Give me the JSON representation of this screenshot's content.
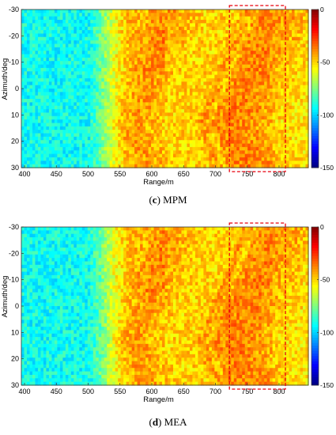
{
  "chart_data": [
    {
      "type": "heatmap",
      "xlabel": "Range/m",
      "ylabel": "Azimuth/deg",
      "xlim": [
        395,
        846
      ],
      "ylim": [
        -30,
        30
      ],
      "y_direction": "reversed",
      "x_ticks": [
        400,
        450,
        500,
        550,
        600,
        650,
        700,
        750,
        800
      ],
      "y_ticks": [
        -30,
        -20,
        -10,
        0,
        10,
        20,
        30
      ],
      "colorbar": {
        "range": [
          -150,
          0
        ],
        "ticks": [
          0,
          -50,
          -100,
          -150
        ],
        "colormap": "jet"
      },
      "highlight_box": {
        "x_range": [
          722,
          810
        ],
        "y_range": [
          -30,
          30
        ],
        "color": "#e8000f",
        "style": "dashed"
      },
      "caption": {
        "label": "c",
        "text": "MPM"
      }
    },
    {
      "type": "heatmap",
      "xlabel": "Range/m",
      "ylabel": "Azimuth/deg",
      "xlim": [
        395,
        846
      ],
      "ylim": [
        -30,
        30
      ],
      "y_direction": "reversed",
      "x_ticks": [
        400,
        450,
        500,
        550,
        600,
        650,
        700,
        750,
        800
      ],
      "y_ticks": [
        -30,
        -20,
        -10,
        0,
        10,
        20,
        30
      ],
      "colorbar": {
        "range": [
          -150,
          0
        ],
        "ticks": [
          0,
          -50,
          -100,
          -150
        ],
        "colormap": "jet"
      },
      "highlight_box": {
        "x_range": [
          722,
          810
        ],
        "y_range": [
          -30,
          30
        ],
        "color": "#e8000f",
        "style": "dashed"
      },
      "caption": {
        "label": "d",
        "text": "MEA"
      }
    }
  ]
}
